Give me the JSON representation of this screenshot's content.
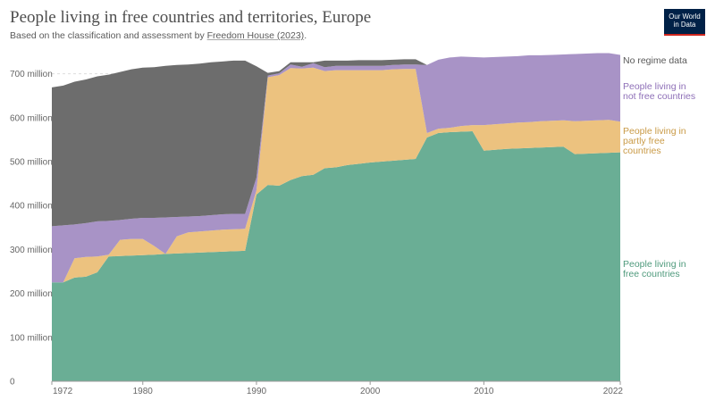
{
  "header": {
    "title": "People living in free countries and territories, Europe",
    "subtitle_prefix": "Based on the classification and assessment by ",
    "subtitle_link": "Freedom House (2023)",
    "subtitle_suffix": "."
  },
  "logo": {
    "line1": "Our World",
    "line2": "in Data"
  },
  "chart_data": {
    "type": "area",
    "stacked": true,
    "x": [
      1972,
      1973,
      1974,
      1975,
      1976,
      1977,
      1978,
      1979,
      1980,
      1981,
      1982,
      1983,
      1984,
      1985,
      1986,
      1987,
      1988,
      1989,
      1990,
      1991,
      1992,
      1993,
      1994,
      1995,
      1996,
      1997,
      1998,
      1999,
      2000,
      2001,
      2002,
      2003,
      2004,
      2005,
      2006,
      2007,
      2008,
      2009,
      2010,
      2011,
      2012,
      2013,
      2014,
      2015,
      2016,
      2017,
      2018,
      2019,
      2020,
      2021,
      2022
    ],
    "series": [
      {
        "name": "People living in free countries",
        "color": "#6aae95",
        "values": [
          225,
          225,
          236,
          238,
          248,
          284,
          285,
          286,
          287,
          288,
          290,
          291,
          292,
          293,
          294,
          295,
          296,
          297,
          425,
          447,
          445,
          458,
          467,
          470,
          485,
          487,
          492,
          495,
          498,
          500,
          502,
          504,
          506,
          555,
          565,
          567,
          568,
          569,
          525,
          527,
          529,
          530,
          531,
          532,
          533,
          534,
          517,
          518,
          519,
          520,
          521
        ]
      },
      {
        "name": "People living in partly free countries",
        "color": "#ecc27f",
        "values": [
          0,
          0,
          44,
          45,
          36,
          4,
          37,
          38,
          37,
          20,
          0,
          39,
          47,
          48,
          49,
          50,
          50,
          50,
          10,
          245,
          252,
          255,
          245,
          244,
          221,
          221,
          216,
          213,
          210,
          208,
          208,
          207,
          205,
          10,
          10,
          10,
          13,
          14,
          58,
          58,
          58,
          59,
          59,
          60,
          60,
          60,
          75,
          75,
          75,
          75,
          70
        ]
      },
      {
        "name": "People living in not free countries",
        "color": "#a893c6",
        "values": [
          128,
          130,
          77,
          77,
          80,
          77,
          45,
          46,
          48,
          64,
          83,
          44,
          36,
          35,
          35,
          35,
          35,
          34,
          29,
          4,
          4,
          8,
          4,
          10,
          9,
          10,
          10,
          10,
          10,
          10,
          10,
          10,
          10,
          155,
          157,
          160,
          158,
          155,
          154,
          153,
          152,
          151,
          152,
          150,
          150,
          150,
          153,
          153,
          153,
          152,
          152
        ]
      },
      {
        "name": "No regime data",
        "color": "#6d6d6d",
        "values": [
          316,
          318,
          325,
          327,
          330,
          333,
          337,
          340,
          342,
          343,
          345,
          346,
          346,
          347,
          348,
          348,
          349,
          349,
          253,
          6,
          5,
          5,
          10,
          2,
          15,
          12,
          12,
          13,
          13,
          13,
          12,
          12,
          12,
          0,
          0,
          0,
          0,
          0,
          0,
          0,
          0,
          0,
          0,
          0,
          0,
          0,
          0,
          0,
          0,
          0,
          0
        ]
      }
    ],
    "series_labels": [
      {
        "lines": [
          "No regime data"
        ],
        "color": "#595959"
      },
      {
        "lines": [
          "People living in",
          "not free countries"
        ],
        "color": "#8e6fb7"
      },
      {
        "lines": [
          "People living in",
          "partly free",
          "countries"
        ],
        "color": "#c99a46"
      },
      {
        "lines": [
          "People living in",
          "free countries"
        ],
        "color": "#4f9a7c"
      }
    ],
    "ylim": [
      0,
      750
    ],
    "yticks": [
      0,
      100,
      200,
      300,
      400,
      500,
      600,
      700
    ],
    "ytick_labels": [
      "0",
      "100 million",
      "200 million",
      "300 million",
      "400 million",
      "500 million",
      "600 million",
      "700 million"
    ],
    "xlim": [
      1972,
      2022
    ],
    "xticks": [
      1972,
      1980,
      1990,
      2000,
      2010,
      2022
    ],
    "xtick_labels": [
      "1972",
      "1980",
      "1990",
      "2000",
      "2010",
      "2022"
    ],
    "xlabel": "",
    "ylabel": "",
    "grid": "horizontal",
    "legend": "right-inline"
  }
}
